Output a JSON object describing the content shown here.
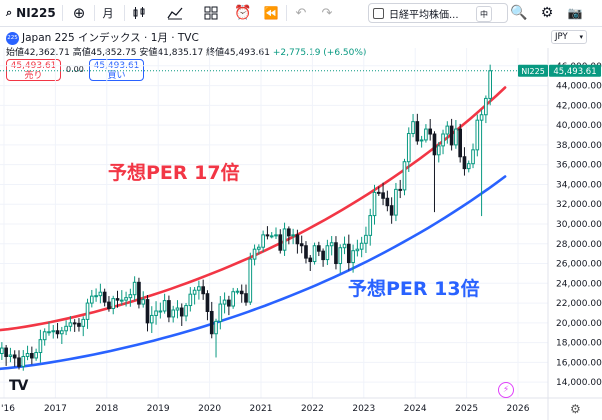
{
  "toolbar": {
    "symbol": "NI225",
    "add_icon": "plus-circle-icon",
    "interval": "月",
    "compare_label": "日経平均株価...",
    "mid_label": "中",
    "icons": [
      "candles-icon",
      "indicators-icon",
      "layout-icon",
      "alert-icon",
      "replay-icon",
      "undo-icon",
      "redo-icon",
      "snapshot-icon",
      "search-icon"
    ]
  },
  "legend": {
    "badge": "225",
    "title": "Japan 225 インデックス · 1月 · TVC",
    "ohlc_open_label": "始値",
    "ohlc_open": "42,362.71",
    "ohlc_high_label": "高値",
    "ohlc_high": "45,852.75",
    "ohlc_low_label": "安値",
    "ohlc_low": "41,835.17",
    "ohlc_close_label": "終値",
    "ohlc_close": "45,493.61",
    "change": "+2,775.19 (+6.50%)"
  },
  "trade": {
    "sell_price": "45,493.61",
    "sell_label": "売り",
    "spread": "0.00",
    "buy_price": "45,493.61",
    "buy_label": "買い"
  },
  "currency": "JPY",
  "last_tag": {
    "symbol": "NI225",
    "price": "45,493.61"
  },
  "annotations": {
    "upper": "予想PER 17倍",
    "lower": "予想PER 13倍"
  },
  "colors": {
    "up": "#089981",
    "down": "#131722",
    "upper_line": "#f23645",
    "lower_line": "#2962ff"
  },
  "chart_data": {
    "type": "candlestick",
    "interval": "monthly",
    "y_ticks": [
      "14,000.00",
      "16,000.00",
      "18,000.00",
      "20,000.00",
      "22,000.00",
      "24,000.00",
      "26,000.00",
      "28,000.00",
      "30,000.00",
      "32,000.00",
      "34,000.00",
      "36,000.00",
      "38,000.00",
      "40,000.00",
      "42,000.00",
      "44,000.00",
      "46,000.00"
    ],
    "y_tick_values": [
      14000,
      16000,
      18000,
      20000,
      22000,
      24000,
      26000,
      28000,
      30000,
      32000,
      34000,
      36000,
      38000,
      40000,
      42000,
      44000,
      46000
    ],
    "ylim": [
      12400,
      47800
    ],
    "x_ticks": [
      "'16",
      "2017",
      "2018",
      "2019",
      "2020",
      "2021",
      "2022",
      "2023",
      "2024",
      "2025",
      "2026"
    ],
    "x_tick_years": [
      2016,
      2017,
      2018,
      2019,
      2020,
      2021,
      2022,
      2023,
      2024,
      2025,
      2026
    ],
    "x_start_year": 2015.75,
    "x_end_year": 2025.95,
    "monthly_close": [
      17400,
      16900,
      17450,
      16600,
      16750,
      16450,
      15600,
      16600,
      16900,
      16450,
      17000,
      18300,
      19100,
      19100,
      19200,
      18900,
      19200,
      19650,
      20000,
      19950,
      19650,
      20350,
      22000,
      22700,
      22750,
      23100,
      22100,
      21450,
      22450,
      22300,
      22300,
      22550,
      22850,
      24100,
      21900,
      22350,
      20000,
      20750,
      21200,
      21200,
      22250,
      20600,
      21300,
      21500,
      20700,
      21750,
      22900,
      23300,
      23650,
      22950,
      21150,
      18900,
      20150,
      21900,
      22300,
      21700,
      23150,
      23200,
      22950,
      22100,
      26450,
      27450,
      27650,
      28900,
      28800,
      28800,
      28900,
      27350,
      29500,
      28800,
      28900,
      28000,
      27800,
      26550,
      26200,
      27800,
      27250,
      26400,
      27800,
      28100,
      26000,
      27600,
      27950,
      26100,
      27300,
      27450,
      28050,
      28850,
      30850,
      33200,
      33150,
      32600,
      31850,
      30900,
      33500,
      33450,
      36300,
      39150,
      40350,
      38400,
      38500,
      39600,
      39100,
      37000,
      37900,
      39100,
      39900,
      38000,
      39600,
      36800,
      35600,
      36100,
      37500,
      40500,
      41050,
      42700,
      45500
    ]
  }
}
